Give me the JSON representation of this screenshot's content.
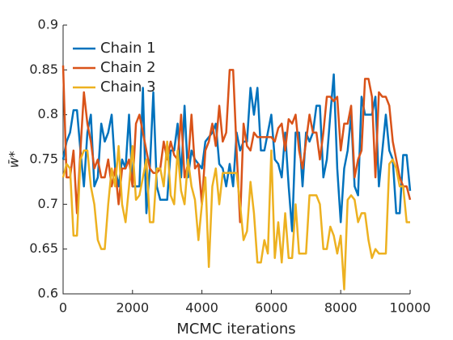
{
  "chart_data": {
    "type": "line",
    "x_label": "MCMC iterations",
    "y_label": "w̄*",
    "x": [
      0,
      100,
      200,
      300,
      400,
      500,
      600,
      700,
      800,
      900,
      1000,
      1100,
      1200,
      1300,
      1400,
      1500,
      1600,
      1700,
      1800,
      1900,
      2000,
      2100,
      2200,
      2300,
      2400,
      2500,
      2600,
      2700,
      2800,
      2900,
      3000,
      3100,
      3200,
      3300,
      3400,
      3500,
      3600,
      3700,
      3800,
      3900,
      4000,
      4100,
      4200,
      4300,
      4400,
      4500,
      4600,
      4700,
      4800,
      4900,
      5000,
      5100,
      5200,
      5300,
      5400,
      5500,
      5600,
      5700,
      5800,
      5900,
      6000,
      6100,
      6200,
      6300,
      6400,
      6500,
      6600,
      6700,
      6800,
      6900,
      7000,
      7100,
      7200,
      7300,
      7400,
      7500,
      7600,
      7700,
      7800,
      7900,
      8000,
      8100,
      8200,
      8300,
      8400,
      8500,
      8600,
      8700,
      8800,
      8900,
      9000,
      9100,
      9200,
      9300,
      9400,
      9500,
      9600,
      9700,
      9800,
      9900,
      10000
    ],
    "series": [
      {
        "name": "Chain 1",
        "color": "#0072BD",
        "values": [
          0.75,
          0.77,
          0.78,
          0.805,
          0.805,
          0.76,
          0.72,
          0.78,
          0.8,
          0.72,
          0.73,
          0.79,
          0.77,
          0.78,
          0.8,
          0.74,
          0.72,
          0.75,
          0.74,
          0.8,
          0.72,
          0.72,
          0.72,
          0.83,
          0.69,
          0.74,
          0.825,
          0.72,
          0.705,
          0.705,
          0.705,
          0.76,
          0.76,
          0.79,
          0.73,
          0.81,
          0.73,
          0.76,
          0.75,
          0.745,
          0.74,
          0.77,
          0.775,
          0.78,
          0.79,
          0.745,
          0.74,
          0.72,
          0.745,
          0.72,
          0.78,
          0.76,
          0.77,
          0.77,
          0.83,
          0.8,
          0.83,
          0.76,
          0.76,
          0.78,
          0.8,
          0.75,
          0.745,
          0.73,
          0.78,
          0.72,
          0.67,
          0.78,
          0.78,
          0.72,
          0.78,
          0.77,
          0.78,
          0.81,
          0.81,
          0.73,
          0.75,
          0.8,
          0.845,
          0.74,
          0.68,
          0.74,
          0.76,
          0.8,
          0.72,
          0.71,
          0.82,
          0.8,
          0.8,
          0.8,
          0.82,
          0.72,
          0.76,
          0.8,
          0.76,
          0.75,
          0.69,
          0.69,
          0.755,
          0.755,
          0.715
        ]
      },
      {
        "name": "Chain 2",
        "color": "#D95319",
        "values": [
          0.855,
          0.73,
          0.73,
          0.76,
          0.69,
          0.76,
          0.825,
          0.79,
          0.77,
          0.74,
          0.75,
          0.73,
          0.73,
          0.75,
          0.72,
          0.74,
          0.7,
          0.74,
          0.74,
          0.75,
          0.72,
          0.79,
          0.8,
          0.78,
          0.76,
          0.74,
          0.735,
          0.735,
          0.74,
          0.77,
          0.75,
          0.77,
          0.755,
          0.75,
          0.8,
          0.73,
          0.745,
          0.8,
          0.74,
          0.745,
          0.7,
          0.76,
          0.77,
          0.79,
          0.765,
          0.81,
          0.77,
          0.78,
          0.85,
          0.85,
          0.76,
          0.68,
          0.79,
          0.765,
          0.76,
          0.78,
          0.775,
          0.775,
          0.775,
          0.775,
          0.775,
          0.77,
          0.785,
          0.79,
          0.76,
          0.795,
          0.79,
          0.8,
          0.76,
          0.74,
          0.77,
          0.8,
          0.78,
          0.78,
          0.75,
          0.78,
          0.82,
          0.82,
          0.815,
          0.82,
          0.76,
          0.79,
          0.79,
          0.81,
          0.73,
          0.75,
          0.76,
          0.84,
          0.84,
          0.82,
          0.73,
          0.825,
          0.82,
          0.82,
          0.81,
          0.77,
          0.75,
          0.73,
          0.72,
          0.72,
          0.705
        ]
      },
      {
        "name": "Chain 3",
        "color": "#EDB120",
        "values": [
          0.73,
          0.745,
          0.74,
          0.665,
          0.665,
          0.75,
          0.76,
          0.76,
          0.72,
          0.7,
          0.66,
          0.65,
          0.65,
          0.7,
          0.74,
          0.72,
          0.765,
          0.7,
          0.68,
          0.72,
          0.765,
          0.705,
          0.71,
          0.73,
          0.75,
          0.68,
          0.68,
          0.74,
          0.74,
          0.72,
          0.77,
          0.71,
          0.7,
          0.76,
          0.715,
          0.7,
          0.75,
          0.72,
          0.705,
          0.66,
          0.7,
          0.73,
          0.63,
          0.72,
          0.74,
          0.7,
          0.735,
          0.735,
          0.735,
          0.735,
          0.735,
          0.7,
          0.66,
          0.67,
          0.725,
          0.69,
          0.635,
          0.635,
          0.66,
          0.645,
          0.76,
          0.64,
          0.68,
          0.635,
          0.69,
          0.64,
          0.64,
          0.7,
          0.645,
          0.645,
          0.645,
          0.71,
          0.71,
          0.71,
          0.7,
          0.65,
          0.65,
          0.675,
          0.665,
          0.645,
          0.665,
          0.605,
          0.705,
          0.71,
          0.705,
          0.68,
          0.69,
          0.69,
          0.66,
          0.64,
          0.65,
          0.645,
          0.645,
          0.645,
          0.745,
          0.75,
          0.74,
          0.72,
          0.72,
          0.68,
          0.68
        ]
      }
    ],
    "xlim": [
      0,
      10000
    ],
    "xticks": [
      0,
      2000,
      4000,
      6000,
      8000,
      10000
    ],
    "ylim": [
      0.6,
      0.9
    ],
    "yticks": [
      0.6,
      0.65,
      0.7,
      0.75,
      0.8,
      0.85,
      0.9
    ],
    "grid": false,
    "legend": "northwest"
  }
}
